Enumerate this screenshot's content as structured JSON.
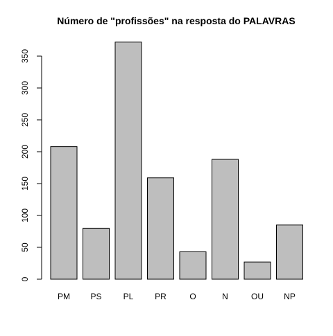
{
  "chart_data": {
    "type": "bar",
    "title": "Número de \"profissões\" na resposta do PALAVRAS",
    "xlabel": "",
    "ylabel": "",
    "categories": [
      "PM",
      "PS",
      "PL",
      "PR",
      "O",
      "N",
      "OU",
      "NP"
    ],
    "values": [
      208,
      80,
      372,
      159,
      43,
      188,
      27,
      85
    ],
    "yticks": [
      0,
      50,
      100,
      150,
      200,
      250,
      300,
      350
    ],
    "ylim": [
      0,
      372
    ],
    "grid": false,
    "legend": "none",
    "colors": {
      "bar_fill": "#bebebe",
      "bar_stroke": "#000000",
      "axis": "#000000"
    }
  }
}
